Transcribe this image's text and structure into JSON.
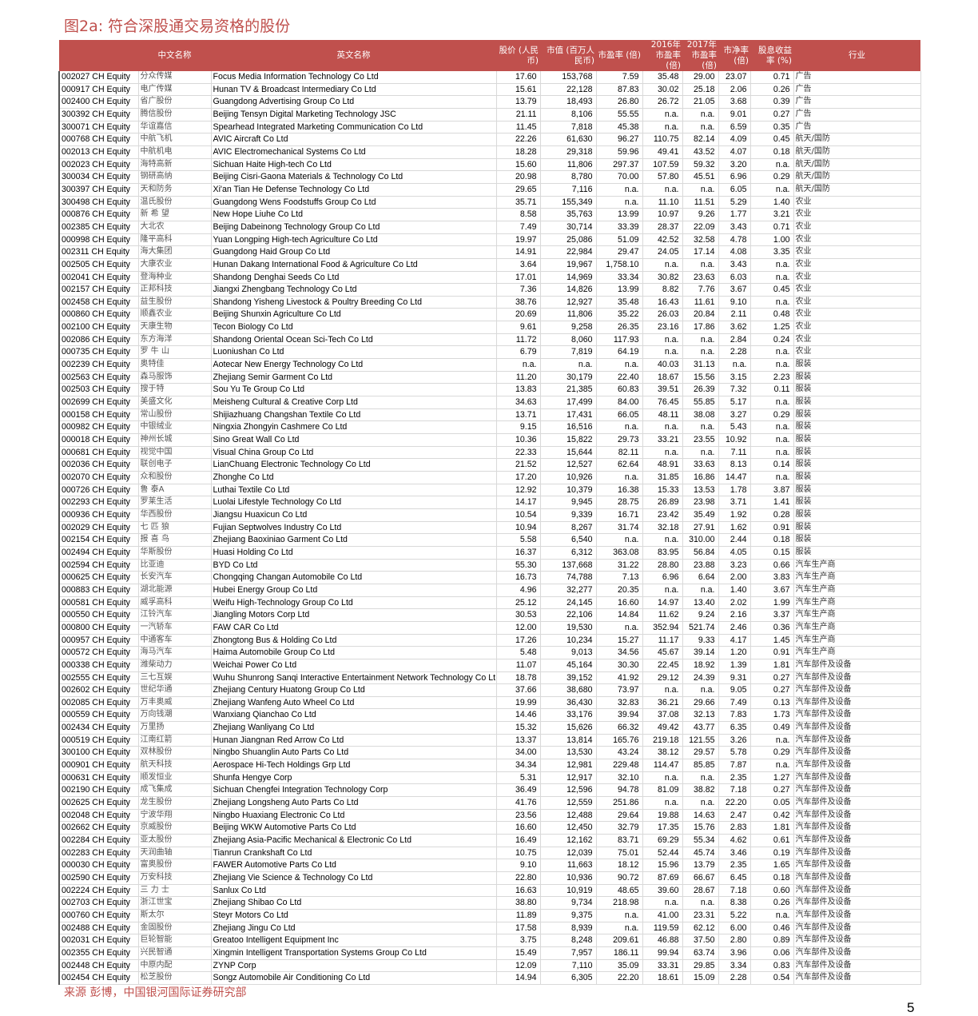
{
  "title": "图2a: 符合深股通交易资格的股份",
  "colors": {
    "header_bg": "#c0504d",
    "accent": "#c0504d"
  },
  "table": {
    "headers": [
      "",
      "中文名称",
      "英文名称",
      "股价 (人民币)",
      "市值 (百万人民币)",
      "市盈率 (倍)",
      "2016年市盈率(倍)",
      "2017年市盈率(倍)",
      "市净率 (倍)",
      "股息收益率 (%)",
      "行业"
    ],
    "rows": [
      [
        "002027 CH Equity",
        "分众传媒",
        "Focus Media Information Technology Co Ltd",
        "17.60",
        "153,768",
        "7.59",
        "35.48",
        "29.00",
        "23.07",
        "0.71",
        "广告"
      ],
      [
        "000917 CH Equity",
        "电广传媒",
        "Hunan TV & Broadcast Intermediary Co Ltd",
        "15.61",
        "22,128",
        "87.83",
        "30.02",
        "25.18",
        "2.06",
        "0.26",
        "广告"
      ],
      [
        "002400 CH Equity",
        "省广股份",
        "Guangdong Advertising Group Co Ltd",
        "13.79",
        "18,493",
        "26.80",
        "26.72",
        "21.05",
        "3.68",
        "0.39",
        "广告"
      ],
      [
        "300392 CH Equity",
        "腾信股份",
        "Beijing Tensyn Digital Marketing Technology JSC",
        "21.11",
        "8,106",
        "55.55",
        "n.a.",
        "n.a.",
        "9.01",
        "0.27",
        "广告"
      ],
      [
        "300071 CH Equity",
        "华谊嘉信",
        "Spearhead Integrated Marketing Communication Co Ltd",
        "11.45",
        "7,818",
        "45.38",
        "n.a.",
        "n.a.",
        "6.59",
        "0.35",
        "广告"
      ],
      [
        "000768 CH Equity",
        "中航飞机",
        "AVIC Aircraft Co Ltd",
        "22.26",
        "61,630",
        "96.27",
        "110.75",
        "82.14",
        "4.09",
        "0.45",
        "航天/国防"
      ],
      [
        "002013 CH Equity",
        "中航机电",
        "AVIC Electromechanical Systems Co Ltd",
        "18.28",
        "29,318",
        "59.96",
        "49.41",
        "43.52",
        "4.07",
        "0.18",
        "航天/国防"
      ],
      [
        "002023 CH Equity",
        "海特高新",
        "Sichuan Haite High-tech Co Ltd",
        "15.60",
        "11,806",
        "297.37",
        "107.59",
        "59.32",
        "3.20",
        "n.a.",
        "航天/国防"
      ],
      [
        "300034 CH Equity",
        "钢研高纳",
        "Beijing Cisri-Gaona Materials & Technology Co Ltd",
        "20.98",
        "8,780",
        "70.00",
        "57.80",
        "45.51",
        "6.96",
        "0.29",
        "航天/国防"
      ],
      [
        "300397 CH Equity",
        "天和防务",
        "Xi'an Tian He Defense Technology Co Ltd",
        "29.65",
        "7,116",
        "n.a.",
        "n.a.",
        "n.a.",
        "6.05",
        "n.a.",
        "航天/国防"
      ],
      [
        "300498 CH Equity",
        "温氏股份",
        "Guangdong Wens Foodstuffs Group Co Ltd",
        "35.71",
        "155,349",
        "n.a.",
        "11.10",
        "11.51",
        "5.29",
        "1.40",
        "农业"
      ],
      [
        "000876 CH Equity",
        "新 希 望",
        "New Hope Liuhe Co Ltd",
        "8.58",
        "35,763",
        "13.99",
        "10.97",
        "9.26",
        "1.77",
        "3.21",
        "农业"
      ],
      [
        "002385 CH Equity",
        "大北农",
        "Beijing Dabeinong Technology Group Co Ltd",
        "7.49",
        "30,714",
        "33.39",
        "28.37",
        "22.09",
        "3.43",
        "0.71",
        "农业"
      ],
      [
        "000998 CH Equity",
        "隆平高科",
        "Yuan Longping High-tech Agriculture Co Ltd",
        "19.97",
        "25,086",
        "51.09",
        "42.52",
        "32.58",
        "4.78",
        "1.00",
        "农业"
      ],
      [
        "002311 CH Equity",
        "海大集团",
        "Guangdong Haid Group Co Ltd",
        "14.91",
        "22,984",
        "29.47",
        "24.05",
        "17.14",
        "4.08",
        "3.35",
        "农业"
      ],
      [
        "002505 CH Equity",
        "大康农业",
        "Hunan Dakang International Food & Agriculture Co Ltd",
        "3.64",
        "19,967",
        "1,758.10",
        "n.a.",
        "n.a.",
        "3.43",
        "n.a.",
        "农业"
      ],
      [
        "002041 CH Equity",
        "登海种业",
        "Shandong Denghai Seeds Co Ltd",
        "17.01",
        "14,969",
        "33.34",
        "30.82",
        "23.63",
        "6.03",
        "n.a.",
        "农业"
      ],
      [
        "002157 CH Equity",
        "正邦科技",
        "Jiangxi Zhengbang Technology Co Ltd",
        "7.36",
        "14,826",
        "13.99",
        "8.82",
        "7.76",
        "3.67",
        "0.45",
        "农业"
      ],
      [
        "002458 CH Equity",
        "益生股份",
        "Shandong Yisheng Livestock & Poultry Breeding Co Ltd",
        "38.76",
        "12,927",
        "35.48",
        "16.43",
        "11.61",
        "9.10",
        "n.a.",
        "农业"
      ],
      [
        "000860 CH Equity",
        "顺鑫农业",
        "Beijing Shunxin Agriculture Co Ltd",
        "20.69",
        "11,806",
        "35.22",
        "26.03",
        "20.84",
        "2.11",
        "0.48",
        "农业"
      ],
      [
        "002100 CH Equity",
        "天康生物",
        "Tecon Biology Co Ltd",
        "9.61",
        "9,258",
        "26.35",
        "23.16",
        "17.86",
        "3.62",
        "1.25",
        "农业"
      ],
      [
        "002086 CH Equity",
        "东方海洋",
        "Shandong Oriental Ocean Sci-Tech Co Ltd",
        "11.72",
        "8,060",
        "117.93",
        "n.a.",
        "n.a.",
        "2.84",
        "0.24",
        "农业"
      ],
      [
        "000735 CH Equity",
        "罗 牛 山",
        "Luoniushan Co Ltd",
        "6.79",
        "7,819",
        "64.19",
        "n.a.",
        "n.a.",
        "2.28",
        "n.a.",
        "农业"
      ],
      [
        "002239 CH Equity",
        "奥特佳",
        "Aotecar New Energy Technology Co Ltd",
        "n.a.",
        "n.a.",
        "n.a.",
        "40.03",
        "31.13",
        "n.a.",
        "n.a.",
        "服装"
      ],
      [
        "002563 CH Equity",
        "森马服饰",
        "Zhejiang Semir Garment Co Ltd",
        "11.20",
        "30,179",
        "22.40",
        "18.67",
        "15.56",
        "3.15",
        "2.23",
        "服装"
      ],
      [
        "002503 CH Equity",
        "搜于特",
        "Sou Yu Te Group Co Ltd",
        "13.83",
        "21,385",
        "60.83",
        "39.51",
        "26.39",
        "7.32",
        "0.11",
        "服装"
      ],
      [
        "002699 CH Equity",
        "美盛文化",
        "Meisheng Cultural & Creative Corp Ltd",
        "34.63",
        "17,499",
        "84.00",
        "76.45",
        "55.85",
        "5.17",
        "n.a.",
        "服装"
      ],
      [
        "000158 CH Equity",
        "常山股份",
        "Shijiazhuang Changshan Textile Co Ltd",
        "13.71",
        "17,431",
        "66.05",
        "48.11",
        "38.08",
        "3.27",
        "0.29",
        "服装"
      ],
      [
        "000982 CH Equity",
        "中银绒业",
        "Ningxia Zhongyin Cashmere Co Ltd",
        "9.15",
        "16,516",
        "n.a.",
        "n.a.",
        "n.a.",
        "5.43",
        "n.a.",
        "服装"
      ],
      [
        "000018 CH Equity",
        "神州长城",
        "Sino Great Wall Co Ltd",
        "10.36",
        "15,822",
        "29.73",
        "33.21",
        "23.55",
        "10.92",
        "n.a.",
        "服装"
      ],
      [
        "000681 CH Equity",
        "视觉中国",
        "Visual China Group Co Ltd",
        "22.33",
        "15,644",
        "82.11",
        "n.a.",
        "n.a.",
        "7.11",
        "n.a.",
        "服装"
      ],
      [
        "002036 CH Equity",
        "联创电子",
        "LianChuang Electronic Technology Co Ltd",
        "21.52",
        "12,527",
        "62.64",
        "48.91",
        "33.63",
        "8.13",
        "0.14",
        "服装"
      ],
      [
        "002070 CH Equity",
        "众和股份",
        "Zhonghe Co Ltd",
        "17.20",
        "10,926",
        "n.a.",
        "31.85",
        "16.86",
        "14.47",
        "n.a.",
        "服装"
      ],
      [
        "000726 CH Equity",
        "鲁 泰A",
        "Luthai Textile Co Ltd",
        "12.92",
        "10,379",
        "16.38",
        "15.33",
        "13.53",
        "1.78",
        "3.87",
        "服装"
      ],
      [
        "002293 CH Equity",
        "罗莱生活",
        "Luolai Lifestyle Technology Co Ltd",
        "14.17",
        "9,945",
        "28.75",
        "26.89",
        "23.98",
        "3.71",
        "1.41",
        "服装"
      ],
      [
        "000936 CH Equity",
        "华西股份",
        "Jiangsu Huaxicun Co Ltd",
        "10.54",
        "9,339",
        "16.71",
        "23.42",
        "35.49",
        "1.92",
        "0.28",
        "服装"
      ],
      [
        "002029 CH Equity",
        "七 匹 狼",
        "Fujian Septwolves Industry Co Ltd",
        "10.94",
        "8,267",
        "31.74",
        "32.18",
        "27.91",
        "1.62",
        "0.91",
        "服装"
      ],
      [
        "002154 CH Equity",
        "报 喜 鸟",
        "Zhejiang Baoxiniao Garment Co Ltd",
        "5.58",
        "6,540",
        "n.a.",
        "n.a.",
        "310.00",
        "2.44",
        "0.18",
        "服装"
      ],
      [
        "002494 CH Equity",
        "华斯股份",
        "Huasi Holding Co Ltd",
        "16.37",
        "6,312",
        "363.08",
        "83.95",
        "56.84",
        "4.05",
        "0.15",
        "服装"
      ],
      [
        "002594 CH Equity",
        "比亚迪",
        "BYD Co Ltd",
        "55.30",
        "137,668",
        "31.22",
        "28.80",
        "23.88",
        "3.23",
        "0.66",
        "汽车生产商"
      ],
      [
        "000625 CH Equity",
        "长安汽车",
        "Chongqing Changan Automobile Co Ltd",
        "16.73",
        "74,788",
        "7.13",
        "6.96",
        "6.64",
        "2.00",
        "3.83",
        "汽车生产商"
      ],
      [
        "000883 CH Equity",
        "湖北能源",
        "Hubei Energy Group Co Ltd",
        "4.96",
        "32,277",
        "20.35",
        "n.a.",
        "n.a.",
        "1.40",
        "3.67",
        "汽车生产商"
      ],
      [
        "000581 CH Equity",
        "威孚高科",
        "Weifu High-Technology Group Co Ltd",
        "25.12",
        "24,145",
        "16.60",
        "14.97",
        "13.40",
        "2.02",
        "1.99",
        "汽车生产商"
      ],
      [
        "000550 CH Equity",
        "江铃汽车",
        "Jiangling Motors Corp Ltd",
        "30.53",
        "22,106",
        "14.84",
        "11.62",
        "9.24",
        "2.16",
        "3.37",
        "汽车生产商"
      ],
      [
        "000800 CH Equity",
        "一汽轿车",
        "FAW CAR Co Ltd",
        "12.00",
        "19,530",
        "n.a.",
        "352.94",
        "521.74",
        "2.46",
        "0.36",
        "汽车生产商"
      ],
      [
        "000957 CH Equity",
        "中通客车",
        "Zhongtong Bus & Holding Co Ltd",
        "17.26",
        "10,234",
        "15.27",
        "11.17",
        "9.33",
        "4.17",
        "1.45",
        "汽车生产商"
      ],
      [
        "000572 CH Equity",
        "海马汽车",
        "Haima Automobile Group Co Ltd",
        "5.48",
        "9,013",
        "34.56",
        "45.67",
        "39.14",
        "1.20",
        "0.91",
        "汽车生产商"
      ],
      [
        "000338 CH Equity",
        "潍柴动力",
        "Weichai Power Co Ltd",
        "11.07",
        "45,164",
        "30.30",
        "22.45",
        "18.92",
        "1.39",
        "1.81",
        "汽车部件及设备"
      ],
      [
        "002555 CH Equity",
        "三七互娱",
        "Wuhu Shunrong Sanqi Interactive Entertainment Network Technology Co Lt",
        "18.78",
        "39,152",
        "41.92",
        "29.12",
        "24.39",
        "9.31",
        "0.27",
        "汽车部件及设备"
      ],
      [
        "002602 CH Equity",
        "世纪华通",
        "Zhejiang Century Huatong Group Co Ltd",
        "37.66",
        "38,680",
        "73.97",
        "n.a.",
        "n.a.",
        "9.05",
        "0.27",
        "汽车部件及设备"
      ],
      [
        "002085 CH Equity",
        "万丰奥威",
        "Zhejiang Wanfeng Auto Wheel Co Ltd",
        "19.99",
        "36,430",
        "32.83",
        "36.21",
        "29.66",
        "7.49",
        "0.13",
        "汽车部件及设备"
      ],
      [
        "000559 CH Equity",
        "万向钱潮",
        "Wanxiang Qianchao Co Ltd",
        "14.46",
        "33,176",
        "39.94",
        "37.08",
        "32.13",
        "7.83",
        "1.73",
        "汽车部件及设备"
      ],
      [
        "002434 CH Equity",
        "万里扬",
        "Zhejiang Wanliyang Co Ltd",
        "15.32",
        "15,626",
        "66.32",
        "49.42",
        "43.77",
        "6.35",
        "0.49",
        "汽车部件及设备"
      ],
      [
        "000519 CH Equity",
        "江南红箭",
        "Hunan Jiangnan Red Arrow Co Ltd",
        "13.37",
        "13,814",
        "165.76",
        "219.18",
        "121.55",
        "3.26",
        "n.a.",
        "汽车部件及设备"
      ],
      [
        "300100 CH Equity",
        "双林股份",
        "Ningbo Shuanglin Auto Parts Co Ltd",
        "34.00",
        "13,530",
        "43.24",
        "38.12",
        "29.57",
        "5.78",
        "0.29",
        "汽车部件及设备"
      ],
      [
        "000901 CH Equity",
        "航天科技",
        "Aerospace Hi-Tech Holdings Grp Ltd",
        "34.34",
        "12,981",
        "229.48",
        "114.47",
        "85.85",
        "7.87",
        "n.a.",
        "汽车部件及设备"
      ],
      [
        "000631 CH Equity",
        "顺发恒业",
        "Shunfa Hengye Corp",
        "5.31",
        "12,917",
        "32.10",
        "n.a.",
        "n.a.",
        "2.35",
        "1.27",
        "汽车部件及设备"
      ],
      [
        "002190 CH Equity",
        "成飞集成",
        "Sichuan Chengfei Integration Technology Corp",
        "36.49",
        "12,596",
        "94.78",
        "81.09",
        "38.82",
        "7.18",
        "0.27",
        "汽车部件及设备"
      ],
      [
        "002625 CH Equity",
        "龙生股份",
        "Zhejiang Longsheng Auto Parts Co Ltd",
        "41.76",
        "12,559",
        "251.86",
        "n.a.",
        "n.a.",
        "22.20",
        "0.05",
        "汽车部件及设备"
      ],
      [
        "002048 CH Equity",
        "宁波华翔",
        "Ningbo Huaxiang Electronic Co Ltd",
        "23.56",
        "12,488",
        "29.64",
        "19.88",
        "14.63",
        "2.47",
        "0.42",
        "汽车部件及设备"
      ],
      [
        "002662 CH Equity",
        "京威股份",
        "Beijing WKW Automotive Parts Co Ltd",
        "16.60",
        "12,450",
        "32.79",
        "17.35",
        "15.76",
        "2.83",
        "1.81",
        "汽车部件及设备"
      ],
      [
        "002284 CH Equity",
        "亚太股份",
        "Zhejiang Asia-Pacific Mechanical & Electronic Co Ltd",
        "16.49",
        "12,162",
        "83.71",
        "69.29",
        "55.34",
        "4.62",
        "0.61",
        "汽车部件及设备"
      ],
      [
        "002283 CH Equity",
        "天润曲轴",
        "Tianrun Crankshaft Co Ltd",
        "10.75",
        "12,039",
        "75.01",
        "52.44",
        "45.74",
        "3.46",
        "0.19",
        "汽车部件及设备"
      ],
      [
        "000030 CH Equity",
        "富奥股份",
        "FAWER Automotive Parts Co Ltd",
        "9.10",
        "11,663",
        "18.12",
        "15.96",
        "13.79",
        "2.35",
        "1.65",
        "汽车部件及设备"
      ],
      [
        "002590 CH Equity",
        "万安科技",
        "Zhejiang Vie Science & Technology Co Ltd",
        "22.80",
        "10,936",
        "90.72",
        "87.69",
        "66.67",
        "6.45",
        "0.18",
        "汽车部件及设备"
      ],
      [
        "002224 CH Equity",
        "三 力 士",
        "Sanlux Co Ltd",
        "16.63",
        "10,919",
        "48.65",
        "39.60",
        "28.67",
        "7.18",
        "0.60",
        "汽车部件及设备"
      ],
      [
        "002703 CH Equity",
        "浙江世宝",
        "Zhejiang Shibao Co Ltd",
        "38.80",
        "9,734",
        "218.98",
        "n.a.",
        "n.a.",
        "8.38",
        "0.26",
        "汽车部件及设备"
      ],
      [
        "000760 CH Equity",
        "斯太尔",
        "Steyr Motors Co Ltd",
        "11.89",
        "9,375",
        "n.a.",
        "41.00",
        "23.31",
        "5.22",
        "n.a.",
        "汽车部件及设备"
      ],
      [
        "002488 CH Equity",
        "金固股份",
        "Zhejiang Jingu Co Ltd",
        "17.58",
        "8,939",
        "n.a.",
        "119.59",
        "62.12",
        "6.00",
        "0.46",
        "汽车部件及设备"
      ],
      [
        "002031 CH Equity",
        "巨轮智能",
        "Greatoo Intelligent Equipment Inc",
        "3.75",
        "8,248",
        "209.61",
        "46.88",
        "37.50",
        "2.80",
        "0.89",
        "汽车部件及设备"
      ],
      [
        "002355 CH Equity",
        "兴民智通",
        "Xingmin Intelligent Transportation Systems Group Co Ltd",
        "15.49",
        "7,957",
        "186.11",
        "99.94",
        "63.74",
        "3.96",
        "0.06",
        "汽车部件及设备"
      ],
      [
        "002448 CH Equity",
        "中原内配",
        "ZYNP Corp",
        "12.09",
        "7,110",
        "35.09",
        "33.31",
        "29.85",
        "3.34",
        "0.83",
        "汽车部件及设备"
      ],
      [
        "002454 CH Equity",
        "松芝股份",
        "Songz Automobile Air Conditioning Co Ltd",
        "14.94",
        "6,305",
        "22.20",
        "18.61",
        "15.09",
        "2.28",
        "0.54",
        "汽车部件及设备"
      ]
    ]
  },
  "source": "来源  彭博，中国银河国际证券研究部",
  "page_number": "5"
}
